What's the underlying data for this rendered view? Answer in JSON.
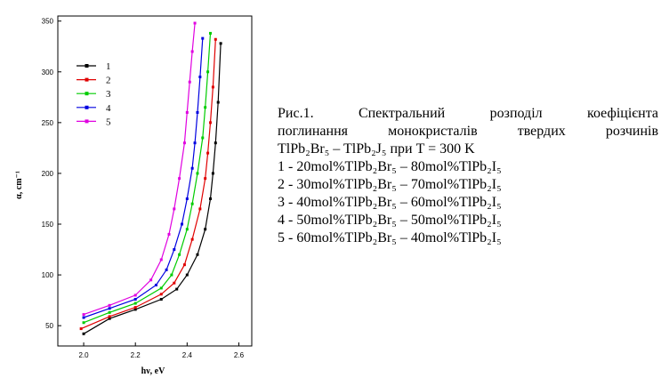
{
  "chart_data": {
    "type": "line",
    "title": "",
    "xlabel": "hν, eV",
    "ylabel": "α, cm⁻¹",
    "xlim": [
      1.9,
      2.65
    ],
    "ylim": [
      30,
      355
    ],
    "x_ticks": [
      "2.0",
      "2.2",
      "2.4",
      "2.6"
    ],
    "x_tick_values": [
      2.0,
      2.2,
      2.4,
      2.6
    ],
    "y_ticks": [
      "50",
      "100",
      "150",
      "200",
      "250",
      "300",
      "350"
    ],
    "y_tick_values": [
      50,
      100,
      150,
      200,
      250,
      300,
      350
    ],
    "grid": false,
    "legend_position": "top-left",
    "series": [
      {
        "name": "1",
        "color": "#000000",
        "marker": "square",
        "x": [
          2.0,
          2.1,
          2.2,
          2.3,
          2.36,
          2.4,
          2.44,
          2.47,
          2.49,
          2.5,
          2.51,
          2.52,
          2.53
        ],
        "y": [
          42,
          57,
          66,
          76,
          86,
          100,
          120,
          145,
          175,
          200,
          230,
          270,
          328
        ]
      },
      {
        "name": "2",
        "color": "#e00000",
        "marker": "square",
        "x": [
          1.99,
          2.1,
          2.2,
          2.3,
          2.35,
          2.39,
          2.42,
          2.45,
          2.47,
          2.48,
          2.49,
          2.5,
          2.51
        ],
        "y": [
          47,
          59,
          68,
          81,
          92,
          110,
          135,
          165,
          195,
          220,
          250,
          285,
          332
        ]
      },
      {
        "name": "3",
        "color": "#00cc00",
        "marker": "square",
        "x": [
          2.0,
          2.1,
          2.2,
          2.3,
          2.34,
          2.37,
          2.4,
          2.42,
          2.44,
          2.46,
          2.47,
          2.48,
          2.49
        ],
        "y": [
          53,
          63,
          72,
          87,
          100,
          120,
          145,
          170,
          200,
          235,
          265,
          300,
          338
        ]
      },
      {
        "name": "4",
        "color": "#0000e0",
        "marker": "square",
        "x": [
          2.0,
          2.1,
          2.2,
          2.28,
          2.32,
          2.35,
          2.38,
          2.4,
          2.42,
          2.43,
          2.44,
          2.45,
          2.46
        ],
        "y": [
          58,
          67,
          76,
          90,
          105,
          125,
          150,
          175,
          205,
          230,
          260,
          295,
          333
        ]
      },
      {
        "name": "5",
        "color": "#e000e0",
        "marker": "square",
        "x": [
          2.0,
          2.1,
          2.2,
          2.26,
          2.3,
          2.33,
          2.35,
          2.37,
          2.39,
          2.4,
          2.41,
          2.42,
          2.43
        ],
        "y": [
          61,
          70,
          80,
          95,
          115,
          140,
          165,
          195,
          230,
          260,
          290,
          320,
          348
        ]
      }
    ]
  },
  "caption": {
    "line1": "Рис.1.   Спектральний   розподіл   коефіцієнта",
    "line2": "поглинання  монокристалів  твердих  розчинів",
    "line3": "TlPb₂Br₅ – TlPb₂J₅ при T = 300 K",
    "item1": "1 - 20mol%TlPb₂Br₅ – 80mol%TlPb₂I₅",
    "item2": "2 - 30mol%TlPb₂Br₅ – 70mol%TlPb₂I₅",
    "item3": "3 - 40mol%TlPb₂Br₅ – 60mol%TlPb₂I₅",
    "item4": "4 - 50mol%TlPb₂Br₅ – 50mol%TlPb₂I₅",
    "item5": "5 - 60mol%TlPb₂Br₅ – 40mol%TlPb₂I₅"
  }
}
